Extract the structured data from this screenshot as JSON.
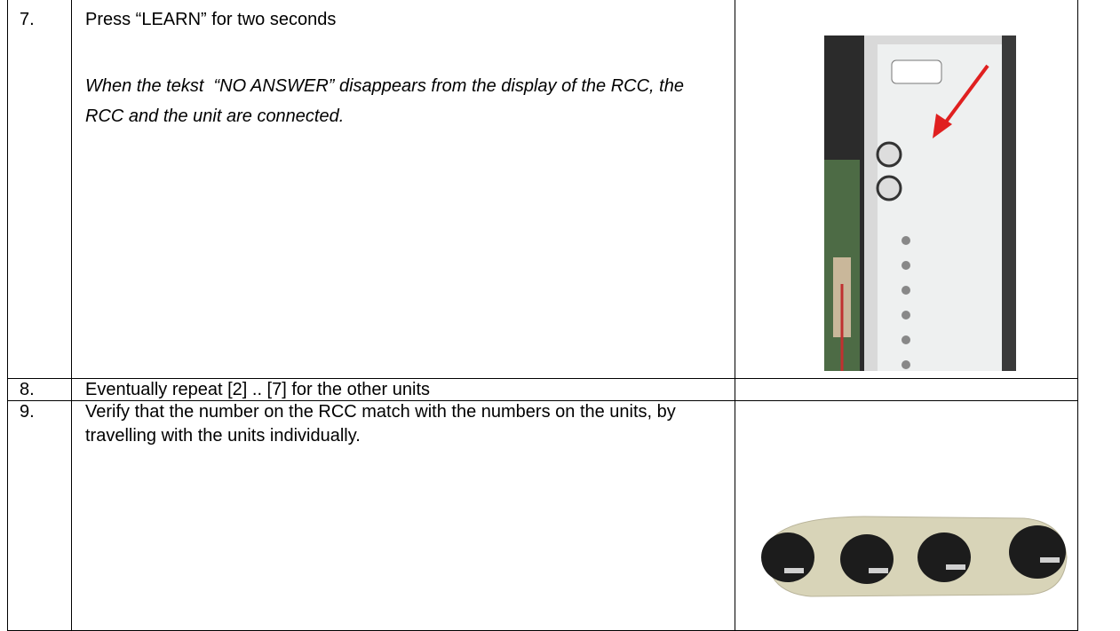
{
  "table": {
    "rows": [
      {
        "number": "7.",
        "instruction": "Press “LEARN” for two seconds",
        "note": "When the tekst  “NO ANSWER” disappears from the display of the RCC, the RCC and the unit are connected."
      },
      {
        "number": "8.",
        "instruction": "Eventually repeat [2] .. [7] for the other units"
      },
      {
        "number": "9.",
        "instruction": "Verify that the number on the RCC match with the numbers on the units, by travelling with the units individually."
      }
    ]
  }
}
